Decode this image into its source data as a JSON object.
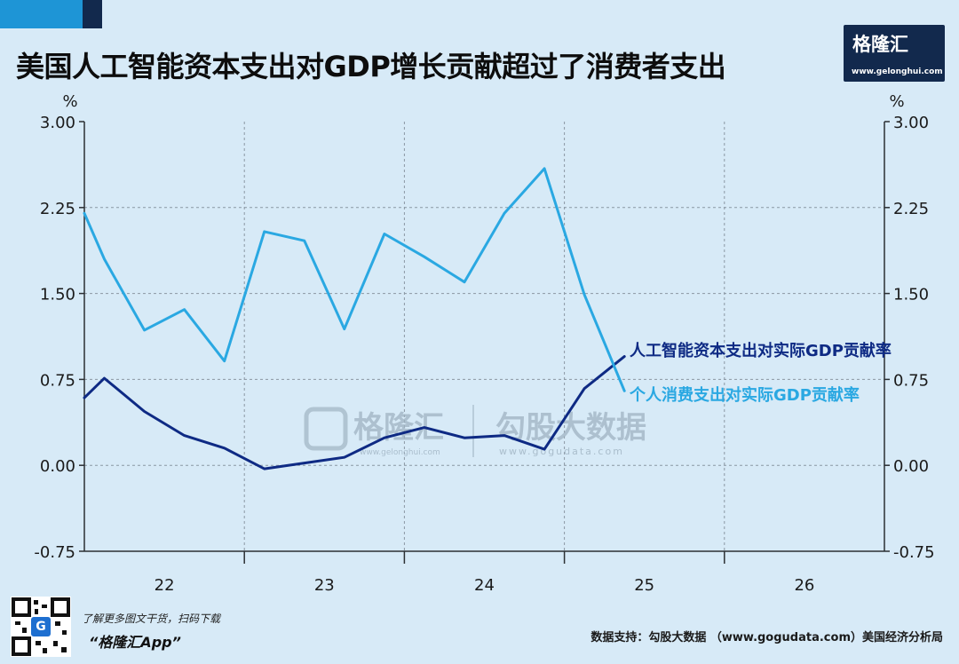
{
  "header": {
    "title": "美国人工智能资本支出对GDP增长贡献超过了消费者支出",
    "logo_text": "格隆汇",
    "logo_url": "www.gelonghui.com"
  },
  "footer": {
    "qr_label": "G",
    "note_line1": "了解更多图文干货，扫码下载",
    "note_line2": "“格隆汇App”",
    "source": "数据支持：勾股大数据 （www.gogudata.com）美国经济分析局"
  },
  "watermark": {
    "brand": "格隆汇",
    "brand_url": "www.gelonghui.com",
    "partner": "勾股大数据",
    "partner_url": "www.gogudata.com"
  },
  "colors": {
    "background": "#d7eaf7",
    "ai_series": "#0e2a84",
    "consumer_series": "#2aa8e2",
    "grid": "#8a97a3",
    "axis": "#2b2f33"
  },
  "chart_data": {
    "type": "line",
    "unit_left": "%",
    "unit_right": "%",
    "ylim": [
      -0.75,
      3.0
    ],
    "yticks": [
      "3.00",
      "2.25",
      "1.50",
      "0.75",
      "0.00",
      "-0.75"
    ],
    "ytick_values": [
      3.0,
      2.25,
      1.5,
      0.75,
      0.0,
      -0.75
    ],
    "xlim": [
      21.5,
      26.5
    ],
    "xtick_values": [
      22,
      23,
      24,
      25,
      26
    ],
    "xtick_labels": [
      "22",
      "23",
      "24",
      "25",
      "26"
    ],
    "grid": true,
    "series": [
      {
        "name": "人工智能资本支出对实际GDP贡献率",
        "color": "#0e2a84",
        "x": [
          21.5,
          21.625,
          21.875,
          22.125,
          22.375,
          22.625,
          22.875,
          23.125,
          23.375,
          23.625,
          23.875,
          24.125,
          24.375,
          24.625,
          24.875
        ],
        "y": [
          0.59,
          0.76,
          0.47,
          0.26,
          0.15,
          -0.03,
          0.02,
          0.07,
          0.24,
          0.33,
          0.24,
          0.26,
          0.14,
          0.67,
          0.95
        ]
      },
      {
        "name": "个人消费支出对实际GDP贡献率",
        "color": "#2aa8e2",
        "x": [
          21.5,
          21.625,
          21.875,
          22.125,
          22.375,
          22.625,
          22.875,
          23.125,
          23.375,
          23.625,
          23.875,
          24.125,
          24.375,
          24.625,
          24.875
        ],
        "y": [
          2.2,
          1.8,
          1.18,
          1.36,
          0.91,
          2.04,
          1.96,
          1.19,
          2.02,
          1.82,
          1.6,
          2.2,
          2.59,
          1.49,
          0.65
        ]
      }
    ]
  }
}
